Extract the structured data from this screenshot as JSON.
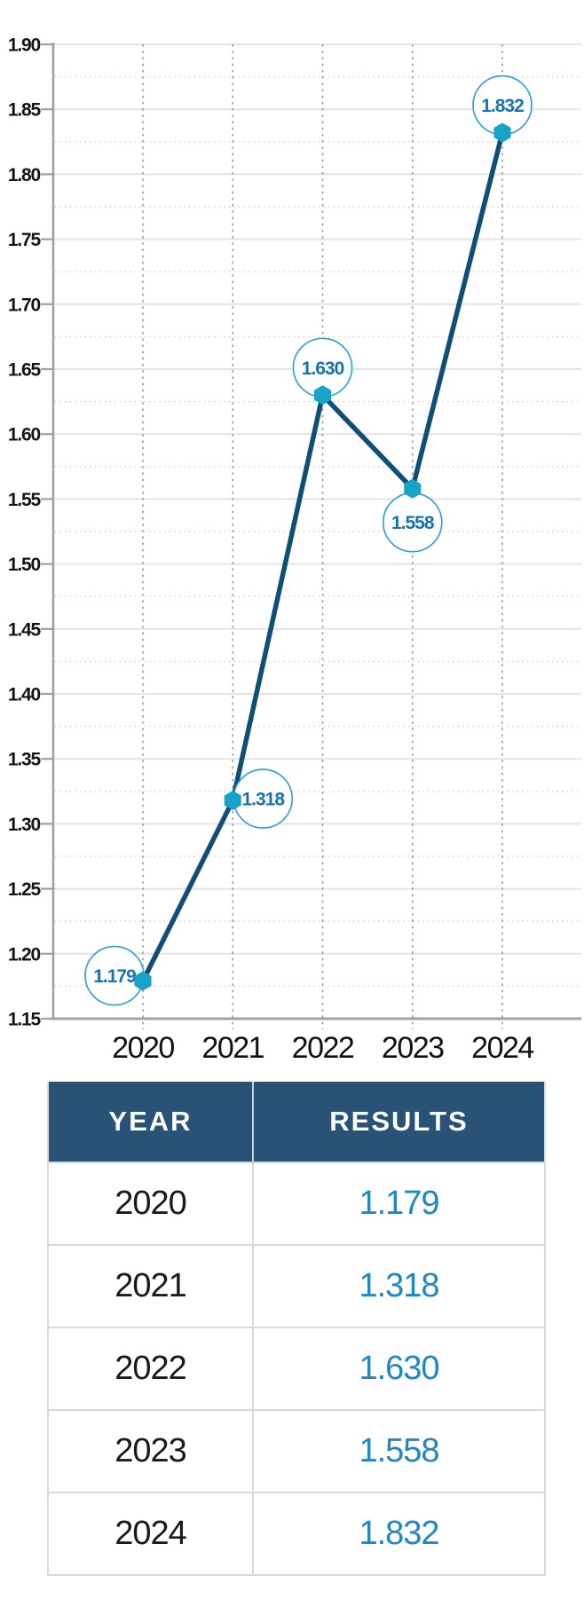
{
  "chart_data": {
    "type": "line",
    "title": "",
    "xlabel": "",
    "ylabel": "",
    "x": [
      "2020",
      "2021",
      "2022",
      "2023",
      "2024"
    ],
    "series": [
      {
        "name": "Results",
        "values": [
          1.179,
          1.318,
          1.63,
          1.558,
          1.832
        ]
      }
    ],
    "point_labels": [
      "1.179",
      "1.318",
      "1.630",
      "1.558",
      "1.832"
    ],
    "ylim": [
      1.15,
      1.9
    ],
    "ytick_step": 0.05,
    "yticks": [
      "1.90",
      "1.85",
      "1.80",
      "1.75",
      "1.70",
      "1.65",
      "1.60",
      "1.55",
      "1.50",
      "1.45",
      "1.40",
      "1.35",
      "1.30",
      "1.25",
      "1.20",
      "1.15"
    ],
    "grid": "solid major horizontals, dotted minor horizontals at 0.025, dotted verticals at each year",
    "legend": "none"
  },
  "table": {
    "columns": [
      "YEAR",
      "RESULTS"
    ],
    "rows": [
      {
        "year": "2020",
        "result": "1.179"
      },
      {
        "year": "2021",
        "result": "1.318"
      },
      {
        "year": "2022",
        "result": "1.630"
      },
      {
        "year": "2023",
        "result": "1.558"
      },
      {
        "year": "2024",
        "result": "1.832"
      }
    ]
  },
  "colors": {
    "line": "#0f4e77",
    "marker": "#17a3c6",
    "label_circle_stroke": "#2b9ed6",
    "label_text": "#1574ae",
    "grid_major": "#e4e4e4",
    "grid_minor": "#cccccc",
    "grid_vertical": "#999999",
    "axis": "#a0a0a0",
    "tick_label": "#141414",
    "header_bg": "#2a5176",
    "header_text": "#ffffff",
    "result_text": "#2187c2"
  }
}
